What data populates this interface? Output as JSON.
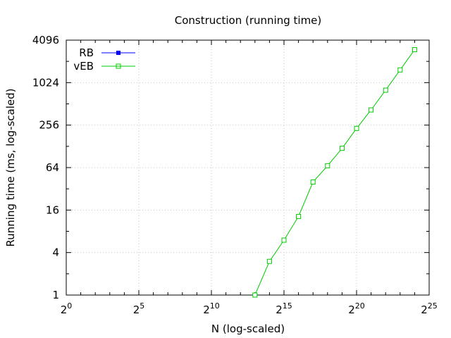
{
  "chart_data": {
    "type": "line",
    "title": "Construction (running time)",
    "xlabel": "N (log-scaled)",
    "ylabel": "Running time (ms, log-scaled)",
    "x_scale": "log2",
    "y_scale": "log2",
    "xlim_exponent": [
      0,
      25
    ],
    "ylim": [
      1,
      4096
    ],
    "x_ticks": [
      {
        "base": "2",
        "exp": "0"
      },
      {
        "base": "2",
        "exp": "5"
      },
      {
        "base": "2",
        "exp": "10"
      },
      {
        "base": "2",
        "exp": "15"
      },
      {
        "base": "2",
        "exp": "20"
      },
      {
        "base": "2",
        "exp": "25"
      }
    ],
    "y_ticks": [
      "1",
      "4",
      "16",
      "64",
      "256",
      "1024",
      "4096"
    ],
    "grid": true,
    "legend_position": "top-left",
    "series": [
      {
        "name": "RB",
        "color": "#0000ff",
        "marker": "filled-square",
        "points": []
      },
      {
        "name": "vEB",
        "color": "#00cc00",
        "marker": "open-square",
        "points": [
          {
            "x_exp": 13,
            "y": 1
          },
          {
            "x_exp": 14,
            "y": 3
          },
          {
            "x_exp": 15,
            "y": 6
          },
          {
            "x_exp": 16,
            "y": 13
          },
          {
            "x_exp": 17,
            "y": 40
          },
          {
            "x_exp": 18,
            "y": 68
          },
          {
            "x_exp": 19,
            "y": 120
          },
          {
            "x_exp": 20,
            "y": 230
          },
          {
            "x_exp": 21,
            "y": 420
          },
          {
            "x_exp": 22,
            "y": 800
          },
          {
            "x_exp": 23,
            "y": 1550
          },
          {
            "x_exp": 24,
            "y": 3000
          }
        ]
      }
    ]
  }
}
